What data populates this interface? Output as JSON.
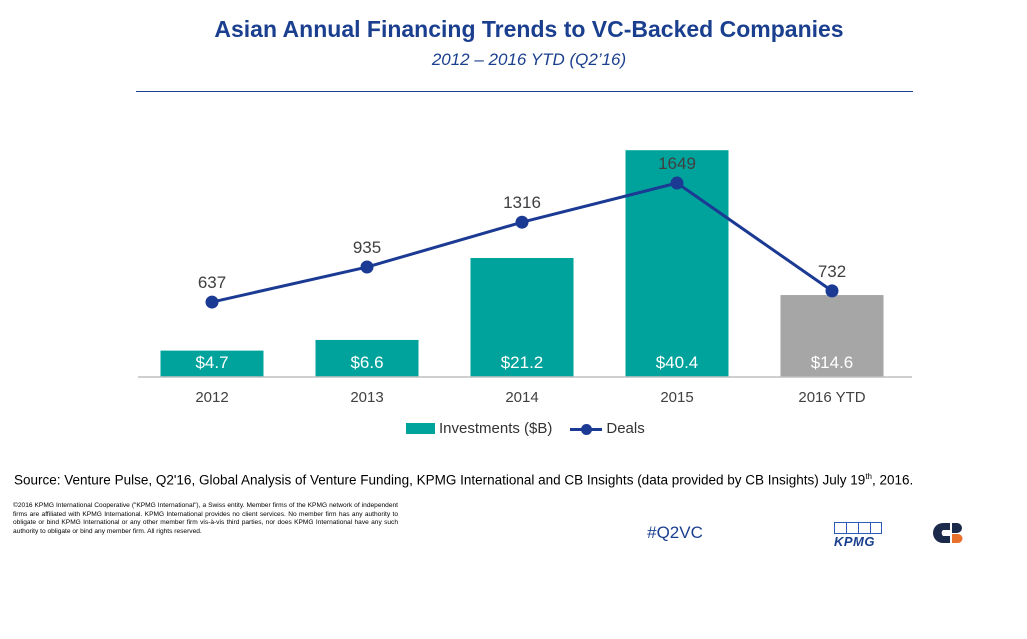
{
  "header": {
    "title": "Asian Annual Financing Trends to VC-Backed Companies",
    "subtitle": "2012 – 2016 YTD (Q2’16)"
  },
  "chart_data": {
    "type": "bar",
    "categories": [
      "2012",
      "2013",
      "2014",
      "2015",
      "2016 YTD"
    ],
    "series": [
      {
        "name": "Investments ($B)",
        "kind": "bar",
        "values": [
          4.7,
          6.6,
          21.2,
          40.4,
          14.6
        ],
        "labels": [
          "$4.7",
          "$6.6",
          "$21.2",
          "$40.4",
          "$14.6"
        ]
      },
      {
        "name": "Deals",
        "kind": "line",
        "values": [
          637,
          935,
          1316,
          1649,
          732
        ],
        "labels": [
          "637",
          "935",
          "1316",
          "1649",
          "732"
        ]
      }
    ],
    "bar_ylim": [
      0,
      44
    ],
    "line_ylim": [
      0,
      2100
    ],
    "legend_position": "bottom"
  },
  "legend": {
    "investments_label": "Investments ($B)",
    "deals_label": "Deals"
  },
  "colors": {
    "title": "#1b3f8f",
    "bar": "#00a39c",
    "bar_ytd": "#a6a6a6",
    "line": "#1b3a93",
    "axis": "#bfbfbf"
  },
  "footer": {
    "source_prefix": "Source: Venture Pulse, Q2'16, Global Analysis of Venture Funding, KPMG International and CB Insights (data provided by CB Insights) July 19",
    "source_sup": "th",
    "source_suffix": ", 2016.",
    "legal": "©2016 KPMG International Cooperative (\"KPMG International\"), a Swiss entity. Member firms of the KPMG network of independent firms are affiliated with KPMG International. KPMG International provides no client services. No member firm has any authority to obligate or bind KPMG International or any other member firm vis-à-vis third parties, nor does KPMG International have any such authority to obligate or bind any member firm. All rights reserved.",
    "hashtag": "#Q2VC",
    "kpmg_logo_text": "KPMG"
  }
}
